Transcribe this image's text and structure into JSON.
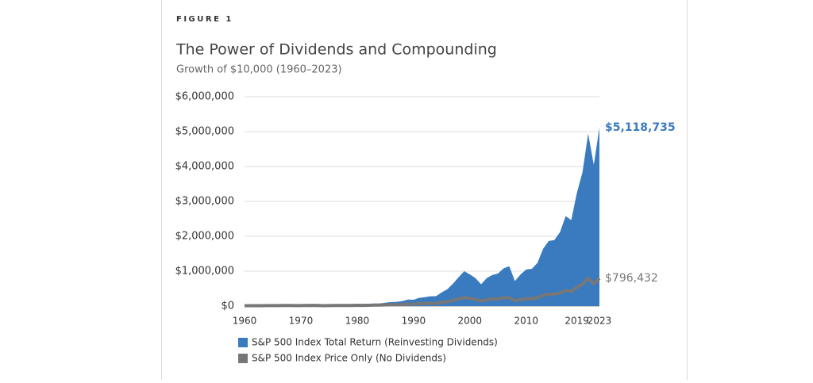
{
  "figure_label": "FIGURE 1",
  "chart_data": {
    "type": "area",
    "title": "The Power of Dividends and Compounding",
    "subtitle": "Growth of $10,000 (1960–2023)",
    "x": [
      1960,
      1961,
      1962,
      1963,
      1964,
      1965,
      1966,
      1967,
      1968,
      1969,
      1970,
      1971,
      1972,
      1973,
      1974,
      1975,
      1976,
      1977,
      1978,
      1979,
      1980,
      1981,
      1982,
      1983,
      1984,
      1985,
      1986,
      1987,
      1988,
      1989,
      1990,
      1991,
      1992,
      1993,
      1994,
      1995,
      1996,
      1997,
      1998,
      1999,
      2000,
      2001,
      2002,
      2003,
      2004,
      2005,
      2006,
      2007,
      2008,
      2009,
      2010,
      2011,
      2012,
      2013,
      2014,
      2015,
      2016,
      2017,
      2018,
      2019,
      2020,
      2021,
      2022,
      2023
    ],
    "xlim": [
      1960,
      2023
    ],
    "xticks": [
      1960,
      1970,
      1980,
      1990,
      2000,
      2010,
      2019,
      2023
    ],
    "ylim": [
      0,
      6000000
    ],
    "yticks": [
      {
        "value": 0,
        "label": "$0"
      },
      {
        "value": 1000000,
        "label": "$1,000,000"
      },
      {
        "value": 2000000,
        "label": "$2,000,000"
      },
      {
        "value": 3000000,
        "label": "$3,000,000"
      },
      {
        "value": 4000000,
        "label": "$4,000,000"
      },
      {
        "value": 5000000,
        "label": "$5,000,000"
      },
      {
        "value": 6000000,
        "label": "$6,000,000"
      }
    ],
    "grid": true,
    "series": [
      {
        "name": "S&P 500 Index Total Return (Reinvesting Dividends)",
        "color": "#3a7bbf",
        "style": "area",
        "values": [
          10000,
          12700,
          11600,
          14200,
          16600,
          18600,
          16800,
          20800,
          23100,
          21100,
          22000,
          25100,
          29900,
          25500,
          18800,
          25800,
          31900,
          29600,
          31600,
          37400,
          49400,
          47000,
          57100,
          70000,
          74400,
          98000,
          116000,
          122000,
          143000,
          188000,
          182000,
          237000,
          255000,
          281000,
          285000,
          392000,
          482000,
          643000,
          827000,
          1001000,
          910000,
          802000,
          625000,
          804000,
          892000,
          935000,
          1083000,
          1142000,
          719000,
          910000,
          1047000,
          1069000,
          1240000,
          1641000,
          1866000,
          1892000,
          2118000,
          2580000,
          2467000,
          3244000,
          3840000,
          4943000,
          4048000,
          5118735
        ],
        "value_labels": [
          null,
          null,
          null,
          null,
          null,
          null,
          null,
          null,
          null,
          null,
          null,
          null,
          null,
          null,
          null,
          null,
          null,
          null,
          null,
          null,
          null,
          null,
          null,
          null,
          null,
          null,
          null,
          null,
          null,
          null,
          null,
          null,
          null,
          null,
          null,
          null,
          null,
          null,
          null,
          null,
          null,
          null,
          null,
          null,
          null,
          null,
          null,
          null,
          null,
          null,
          null,
          null,
          null,
          null,
          null,
          null,
          null,
          null,
          null,
          null,
          null,
          null,
          null,
          "$5,118,735"
        ]
      },
      {
        "name": "S&P 500 Index Price Only (No Dividends)",
        "color": "#777777",
        "style": "line",
        "values": [
          10000,
          11960,
          10540,
          12530,
          14160,
          15430,
          13410,
          16120,
          17350,
          15380,
          15400,
          17050,
          19720,
          16300,
          11460,
          15060,
          17950,
          15880,
          16050,
          18020,
          22680,
          20470,
          23480,
          27540,
          27920,
          35290,
          40450,
          41270,
          46380,
          59020,
          55140,
          69660,
          72760,
          77910,
          76700,
          102860,
          123700,
          162060,
          205240,
          245320,
          220440,
          191720,
          146960,
          185700,
          202400,
          208420,
          236810,
          245160,
          150800,
          186210,
          210090,
          209900,
          238140,
          308620,
          343850,
          341350,
          373910,
          446560,
          418670,
          539580,
          627250,
          795920,
          641280,
          796432
        ],
        "value_labels": [
          null,
          null,
          null,
          null,
          null,
          null,
          null,
          null,
          null,
          null,
          null,
          null,
          null,
          null,
          null,
          null,
          null,
          null,
          null,
          null,
          null,
          null,
          null,
          null,
          null,
          null,
          null,
          null,
          null,
          null,
          null,
          null,
          null,
          null,
          null,
          null,
          null,
          null,
          null,
          null,
          null,
          null,
          null,
          null,
          null,
          null,
          null,
          null,
          null,
          null,
          null,
          null,
          null,
          null,
          null,
          null,
          null,
          null,
          null,
          null,
          null,
          null,
          null,
          "$796,432"
        ]
      }
    ]
  }
}
